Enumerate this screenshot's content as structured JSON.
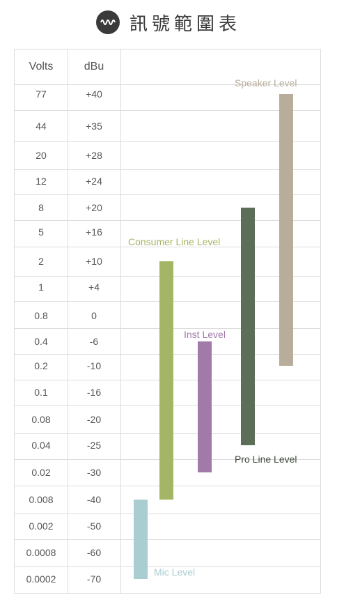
{
  "header": {
    "title": "訊號範圍表",
    "logo_icon": "waveform-icon"
  },
  "chart_data": {
    "type": "range-bar",
    "columns": [
      "Volts",
      "dBu"
    ],
    "rows": [
      {
        "volts": "77",
        "dbu": "+40"
      },
      {
        "volts": "44",
        "dbu": "+35"
      },
      {
        "volts": "20",
        "dbu": "+28"
      },
      {
        "volts": "12",
        "dbu": "+24"
      },
      {
        "volts": "8",
        "dbu": "+20"
      },
      {
        "volts": "5",
        "dbu": "+16"
      },
      {
        "volts": "2",
        "dbu": "+10"
      },
      {
        "volts": "1",
        "dbu": "+4"
      },
      {
        "volts": "0.8",
        "dbu": "0"
      },
      {
        "volts": "0.4",
        "dbu": "-6"
      },
      {
        "volts": "0.2",
        "dbu": "-10"
      },
      {
        "volts": "0.1",
        "dbu": "-16"
      },
      {
        "volts": "0.08",
        "dbu": "-20"
      },
      {
        "volts": "0.04",
        "dbu": "-25"
      },
      {
        "volts": "0.02",
        "dbu": "-30"
      },
      {
        "volts": "0.008",
        "dbu": "-40"
      },
      {
        "volts": "0.002",
        "dbu": "-50"
      },
      {
        "volts": "0.0008",
        "dbu": "-60"
      },
      {
        "volts": "0.0002",
        "dbu": "-70"
      }
    ],
    "series": [
      {
        "name": "Mic Level",
        "color": "#a9cdd1",
        "dbu_range": [
          -70,
          -40
        ]
      },
      {
        "name": "Consumer Line Level",
        "color": "#a4b565",
        "dbu_range": [
          -40,
          10
        ]
      },
      {
        "name": "Inst Level",
        "color": "#a27aaa",
        "dbu_range": [
          -30,
          -6
        ]
      },
      {
        "name": "Pro Line Level",
        "color": "#5d6e58",
        "dbu_range": [
          -25,
          20
        ]
      },
      {
        "name": "Speaker Level",
        "color": "#b8ad9b",
        "dbu_range": [
          -10,
          40
        ]
      }
    ]
  }
}
